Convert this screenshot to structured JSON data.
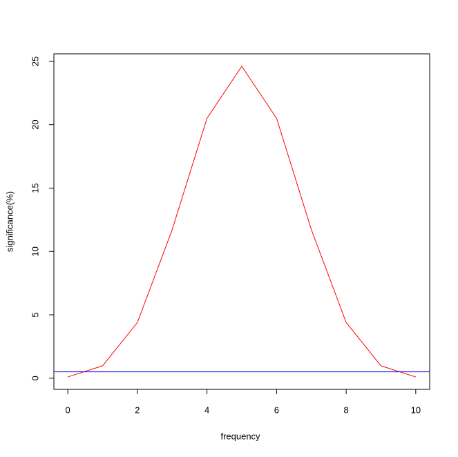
{
  "chart_data": {
    "type": "line",
    "xlabel": "frequency",
    "ylabel": "significance(%)",
    "x": [
      0,
      1,
      2,
      3,
      4,
      5,
      6,
      7,
      8,
      9,
      10
    ],
    "values": [
      0.098,
      0.977,
      4.395,
      11.719,
      20.508,
      24.609,
      20.508,
      11.719,
      4.395,
      0.977,
      0.098
    ],
    "color": "#ff0000",
    "hline": {
      "y": 0.5,
      "color": "#0000ff"
    },
    "xlim": [
      -0.4,
      10.4
    ],
    "xticks": [
      0,
      2,
      4,
      6,
      8,
      10
    ],
    "ylim": [
      -0.88,
      25.59
    ],
    "yticks": [
      0,
      5,
      10,
      15,
      20,
      25
    ]
  }
}
